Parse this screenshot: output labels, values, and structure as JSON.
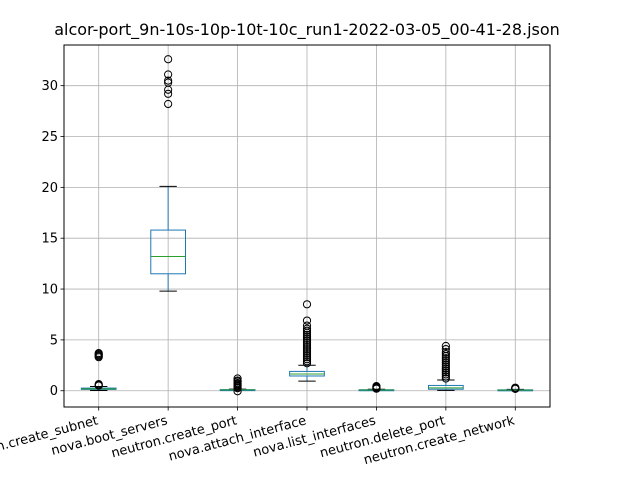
{
  "chart_data": {
    "type": "box",
    "title": "alcor-port_9n-10s-10p-10t-10c_run1-2022-03-05_00-41-28.json",
    "xlabel": "",
    "ylabel": "",
    "ylim": [
      -1.6,
      34.0
    ],
    "yticks": [
      0,
      5,
      10,
      15,
      20,
      25,
      30
    ],
    "grid": true,
    "colors": {
      "box": "#1f77b4",
      "median": "#2ca02c",
      "whisker": "#000000",
      "flier": "#000000",
      "grid": "#b0b0b0"
    },
    "categories": [
      "neutron.create_subnet",
      "nova.boot_servers",
      "neutron.create_port",
      "nova.attach_interface",
      "nova.list_interfaces",
      "neutron.delete_port",
      "neutron.create_network"
    ],
    "boxes": [
      {
        "whislo": 0.02,
        "q1": 0.13,
        "med": 0.18,
        "q3": 0.26,
        "whishi": 0.42,
        "fliers": [
          0.5,
          0.58,
          0.65,
          3.3,
          3.4,
          3.5,
          3.6,
          3.7
        ]
      },
      {
        "whislo": 9.8,
        "q1": 11.5,
        "med": 13.2,
        "q3": 15.8,
        "whishi": 20.1,
        "fliers": [
          28.2,
          29.2,
          29.6,
          30.3,
          30.5,
          31.1,
          32.6
        ]
      },
      {
        "whislo": 0.02,
        "q1": 0.05,
        "med": 0.08,
        "q3": 0.11,
        "whishi": 0.16,
        "fliers": [
          -0.05,
          0.25,
          0.35,
          0.45,
          0.55,
          0.65,
          0.75,
          0.9,
          1.0,
          1.2
        ]
      },
      {
        "whislo": 0.95,
        "q1": 1.45,
        "med": 1.65,
        "q3": 1.9,
        "whishi": 2.5,
        "fliers": [
          2.7,
          2.9,
          3.1,
          3.3,
          3.5,
          3.7,
          3.9,
          4.1,
          4.3,
          4.5,
          4.7,
          4.9,
          5.1,
          5.3,
          5.5,
          5.7,
          5.9,
          6.1,
          6.4,
          6.9,
          8.5
        ]
      },
      {
        "whislo": 0.02,
        "q1": 0.05,
        "med": 0.07,
        "q3": 0.1,
        "whishi": 0.15,
        "fliers": [
          0.2,
          0.25,
          0.3,
          0.35,
          0.4,
          0.45
        ]
      },
      {
        "whislo": 0.03,
        "q1": 0.15,
        "med": 0.28,
        "q3": 0.52,
        "whishi": 1.05,
        "fliers": [
          1.2,
          1.4,
          1.6,
          1.8,
          2.0,
          2.2,
          2.4,
          2.6,
          2.8,
          3.0,
          3.2,
          3.4,
          3.6,
          3.8,
          4.1,
          4.4
        ]
      },
      {
        "whislo": 0.02,
        "q1": 0.04,
        "med": 0.06,
        "q3": 0.09,
        "whishi": 0.13,
        "fliers": [
          0.18,
          0.22,
          0.26,
          0.3
        ]
      }
    ]
  }
}
